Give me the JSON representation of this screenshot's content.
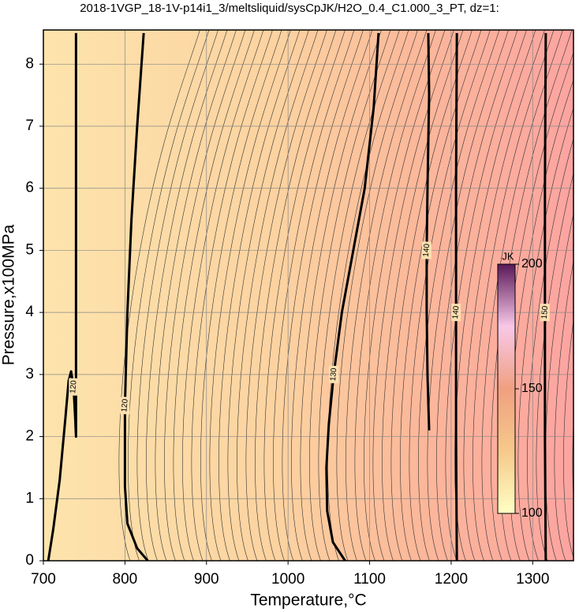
{
  "chart_data": {
    "type": "contour",
    "title": "2018-1VGP_18-1V-p14i1_3/meltsliquid/sysCpJK/H2O_0.4_C1.000_3_PT, dz=1:",
    "x_label": "Temperature,°C",
    "y_label": "Pressure,x100MPa",
    "xlim": [
      700,
      1350
    ],
    "ylim": [
      0,
      8.55
    ],
    "xticks": [
      700,
      800,
      900,
      1000,
      1100,
      1200,
      1300
    ],
    "yticks": [
      0,
      1,
      2,
      3,
      4,
      5,
      6,
      7,
      8
    ],
    "grid": true,
    "contours": [
      {
        "level": 120,
        "x": [
          706,
          712,
          720,
          727,
          731,
          734,
          737,
          739,
          740,
          740,
          740,
          740
        ],
        "y": [
          0,
          0.5,
          1.3,
          2.3,
          2.9,
          3.05,
          2.8,
          2.3,
          2.0,
          3,
          6,
          8.5
        ]
      },
      {
        "level": 120,
        "x": [
          828,
          815,
          803,
          800,
          800,
          803,
          808,
          815,
          823
        ],
        "y": [
          0,
          0.2,
          0.6,
          1.2,
          2.5,
          4,
          5.5,
          7,
          8.5
        ]
      },
      {
        "level": 130,
        "x": [
          1070,
          1055,
          1048,
          1047,
          1050,
          1056,
          1066,
          1080,
          1094,
          1105,
          1111
        ],
        "y": [
          0,
          0.3,
          0.8,
          1.5,
          2.2,
          3,
          4,
          5,
          6,
          7.3,
          8.5
        ]
      },
      {
        "level": 140,
        "x": [
          1173,
          1171,
          1170,
          1170,
          1171,
          1173,
          1172
        ],
        "y": [
          2.1,
          3,
          4,
          5,
          6,
          7.5,
          8.5
        ]
      },
      {
        "level": 140,
        "x": [
          1207,
          1206,
          1206,
          1206,
          1207
        ],
        "y": [
          0,
          2,
          4,
          6,
          8.5
        ]
      },
      {
        "level": 150,
        "x": [
          1316,
          1315,
          1315,
          1315,
          1316
        ],
        "y": [
          0,
          2,
          4,
          6,
          8.5
        ]
      }
    ],
    "colorbar": {
      "label": "JK",
      "lim": [
        100,
        200
      ],
      "ticks": [
        100,
        150,
        200
      ],
      "colors": [
        "#ffffc4",
        "#f6c98a",
        "#f0a080",
        "#f8c8e8",
        "#5a1858"
      ]
    }
  }
}
